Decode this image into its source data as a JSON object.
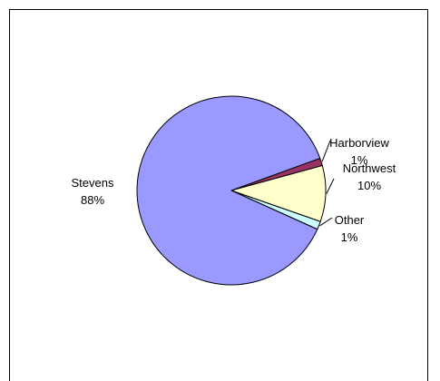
{
  "chart_data": {
    "type": "pie",
    "title": "",
    "slices": [
      {
        "label": "Harborview",
        "percent_label": "1%",
        "value": 1.3,
        "color": "#993366"
      },
      {
        "label": "Northwest",
        "percent_label": "10%",
        "value": 9.6,
        "color": "#FFFFCC"
      },
      {
        "label": "Other",
        "percent_label": "1%",
        "value": 1.4,
        "color": "#CCFFFF"
      },
      {
        "label": "Stevens",
        "percent_label": "88%",
        "value": 87.7,
        "color": "#9999FF"
      }
    ],
    "start_angle_deg": 20,
    "direction": "clockwise",
    "slice_outline_color": "#000000",
    "leader_lines": [
      "Harborview",
      "Northwest",
      "Other"
    ]
  }
}
